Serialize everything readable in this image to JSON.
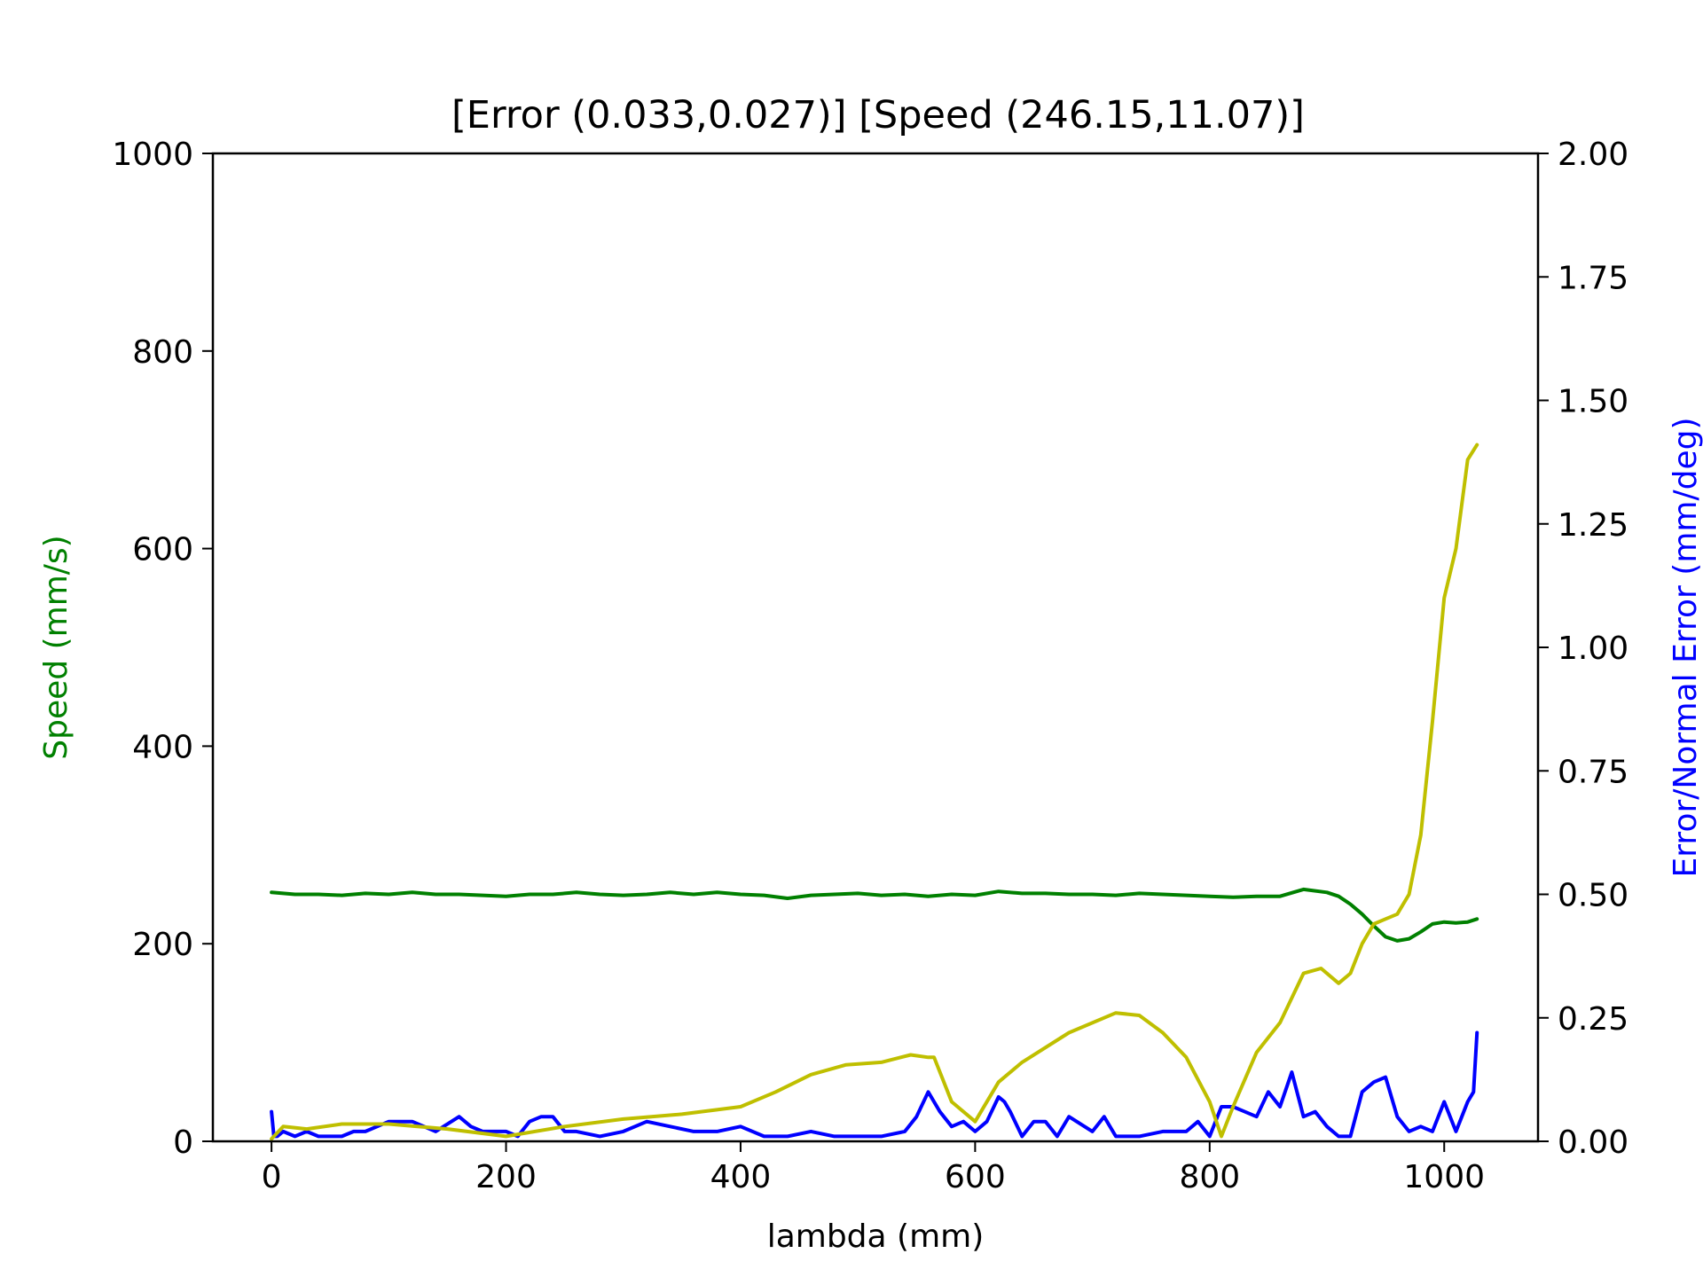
{
  "chart_data": {
    "type": "line",
    "title": "[Error (0.033,0.027)] [Speed (246.15,11.07)]",
    "xlabel": "lambda (mm)",
    "ylabel_left": "Speed (mm/s)",
    "ylabel_right": "Error/Normal Error (mm/deg)",
    "xlim": [
      -50,
      1080
    ],
    "ylim_left": [
      0,
      1000
    ],
    "ylim_right": [
      0,
      2.0
    ],
    "x_ticks": [
      "0",
      "200",
      "400",
      "600",
      "800",
      "1000"
    ],
    "y_ticks_left": [
      "0",
      "200",
      "400",
      "600",
      "800",
      "1000"
    ],
    "y_ticks_right": [
      "0.00",
      "0.25",
      "0.50",
      "0.75",
      "1.00",
      "1.25",
      "1.50",
      "1.75",
      "2.00"
    ],
    "grid": false,
    "legend": "none",
    "colors": {
      "speed": "#008000",
      "error": "#0000ff",
      "normal_error": "#bfbf00",
      "axis": "#000000"
    },
    "series": [
      {
        "key": "speed",
        "axis": "left",
        "x": [
          0,
          20,
          40,
          60,
          80,
          100,
          120,
          140,
          160,
          180,
          200,
          220,
          240,
          260,
          280,
          300,
          320,
          340,
          360,
          380,
          400,
          420,
          440,
          460,
          480,
          500,
          520,
          540,
          560,
          580,
          600,
          620,
          640,
          660,
          680,
          700,
          720,
          740,
          760,
          780,
          800,
          820,
          840,
          860,
          880,
          900,
          910,
          920,
          930,
          940,
          950,
          960,
          970,
          980,
          990,
          1000,
          1010,
          1020,
          1028
        ],
        "y": [
          252,
          250,
          250,
          249,
          251,
          250,
          252,
          250,
          250,
          249,
          248,
          250,
          250,
          252,
          250,
          249,
          250,
          252,
          250,
          252,
          250,
          249,
          246,
          249,
          250,
          251,
          249,
          250,
          248,
          250,
          249,
          253,
          251,
          251,
          250,
          250,
          249,
          251,
          250,
          249,
          248,
          247,
          248,
          248,
          255,
          252,
          248,
          240,
          230,
          218,
          207,
          203,
          205,
          212,
          220,
          222,
          221,
          222,
          225
        ]
      },
      {
        "key": "error",
        "axis": "right",
        "x": [
          0,
          2,
          5,
          10,
          20,
          30,
          40,
          60,
          70,
          80,
          100,
          110,
          120,
          140,
          160,
          170,
          180,
          200,
          210,
          220,
          230,
          240,
          250,
          260,
          280,
          300,
          320,
          340,
          360,
          380,
          400,
          420,
          440,
          460,
          480,
          500,
          520,
          540,
          550,
          560,
          570,
          580,
          590,
          600,
          610,
          620,
          625,
          630,
          640,
          650,
          660,
          670,
          680,
          700,
          710,
          720,
          740,
          760,
          780,
          790,
          800,
          810,
          820,
          840,
          850,
          860,
          870,
          880,
          890,
          900,
          910,
          920,
          930,
          940,
          950,
          960,
          970,
          980,
          990,
          1000,
          1010,
          1020,
          1025,
          1028
        ],
        "y": [
          0.06,
          0.01,
          0.01,
          0.02,
          0.01,
          0.02,
          0.01,
          0.01,
          0.02,
          0.02,
          0.04,
          0.04,
          0.04,
          0.02,
          0.05,
          0.03,
          0.02,
          0.02,
          0.01,
          0.04,
          0.05,
          0.05,
          0.02,
          0.02,
          0.01,
          0.02,
          0.04,
          0.03,
          0.02,
          0.02,
          0.03,
          0.01,
          0.01,
          0.02,
          0.01,
          0.01,
          0.01,
          0.02,
          0.05,
          0.1,
          0.06,
          0.03,
          0.04,
          0.02,
          0.04,
          0.09,
          0.08,
          0.06,
          0.01,
          0.04,
          0.04,
          0.01,
          0.05,
          0.02,
          0.05,
          0.01,
          0.01,
          0.02,
          0.02,
          0.04,
          0.01,
          0.07,
          0.07,
          0.05,
          0.1,
          0.07,
          0.14,
          0.05,
          0.06,
          0.03,
          0.01,
          0.01,
          0.1,
          0.12,
          0.13,
          0.05,
          0.02,
          0.03,
          0.02,
          0.08,
          0.02,
          0.08,
          0.1,
          0.22
        ]
      },
      {
        "key": "normal_error",
        "axis": "right",
        "x": [
          0,
          10,
          30,
          60,
          100,
          150,
          200,
          250,
          300,
          350,
          400,
          430,
          460,
          490,
          520,
          545,
          560,
          565,
          580,
          600,
          620,
          640,
          680,
          720,
          740,
          760,
          780,
          800,
          810,
          820,
          840,
          860,
          880,
          895,
          910,
          920,
          930,
          940,
          950,
          960,
          970,
          980,
          990,
          1000,
          1010,
          1020,
          1028
        ],
        "y": [
          0.005,
          0.03,
          0.025,
          0.035,
          0.035,
          0.025,
          0.01,
          0.03,
          0.045,
          0.055,
          0.07,
          0.1,
          0.135,
          0.155,
          0.16,
          0.175,
          0.17,
          0.17,
          0.08,
          0.04,
          0.12,
          0.16,
          0.22,
          0.26,
          0.255,
          0.22,
          0.17,
          0.08,
          0.01,
          0.07,
          0.18,
          0.24,
          0.34,
          0.35,
          0.32,
          0.34,
          0.4,
          0.44,
          0.45,
          0.46,
          0.5,
          0.62,
          0.85,
          1.1,
          1.2,
          1.38,
          1.41
        ]
      }
    ]
  }
}
